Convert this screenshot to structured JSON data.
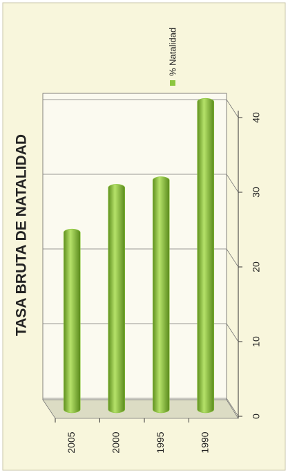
{
  "chart_data": {
    "type": "bar",
    "title": "TASA BRUTA DE NATALIDAD",
    "categories": [
      "2005",
      "2000",
      "1995",
      "1990"
    ],
    "series": [
      {
        "name": "% Natalidad",
        "color": "#8cc63f",
        "values": [
          23.5,
          29.5,
          30.5,
          41
        ]
      }
    ],
    "ylim": [
      0,
      40
    ],
    "yticks": [
      0,
      10,
      20,
      30,
      40
    ],
    "grid": true
  }
}
